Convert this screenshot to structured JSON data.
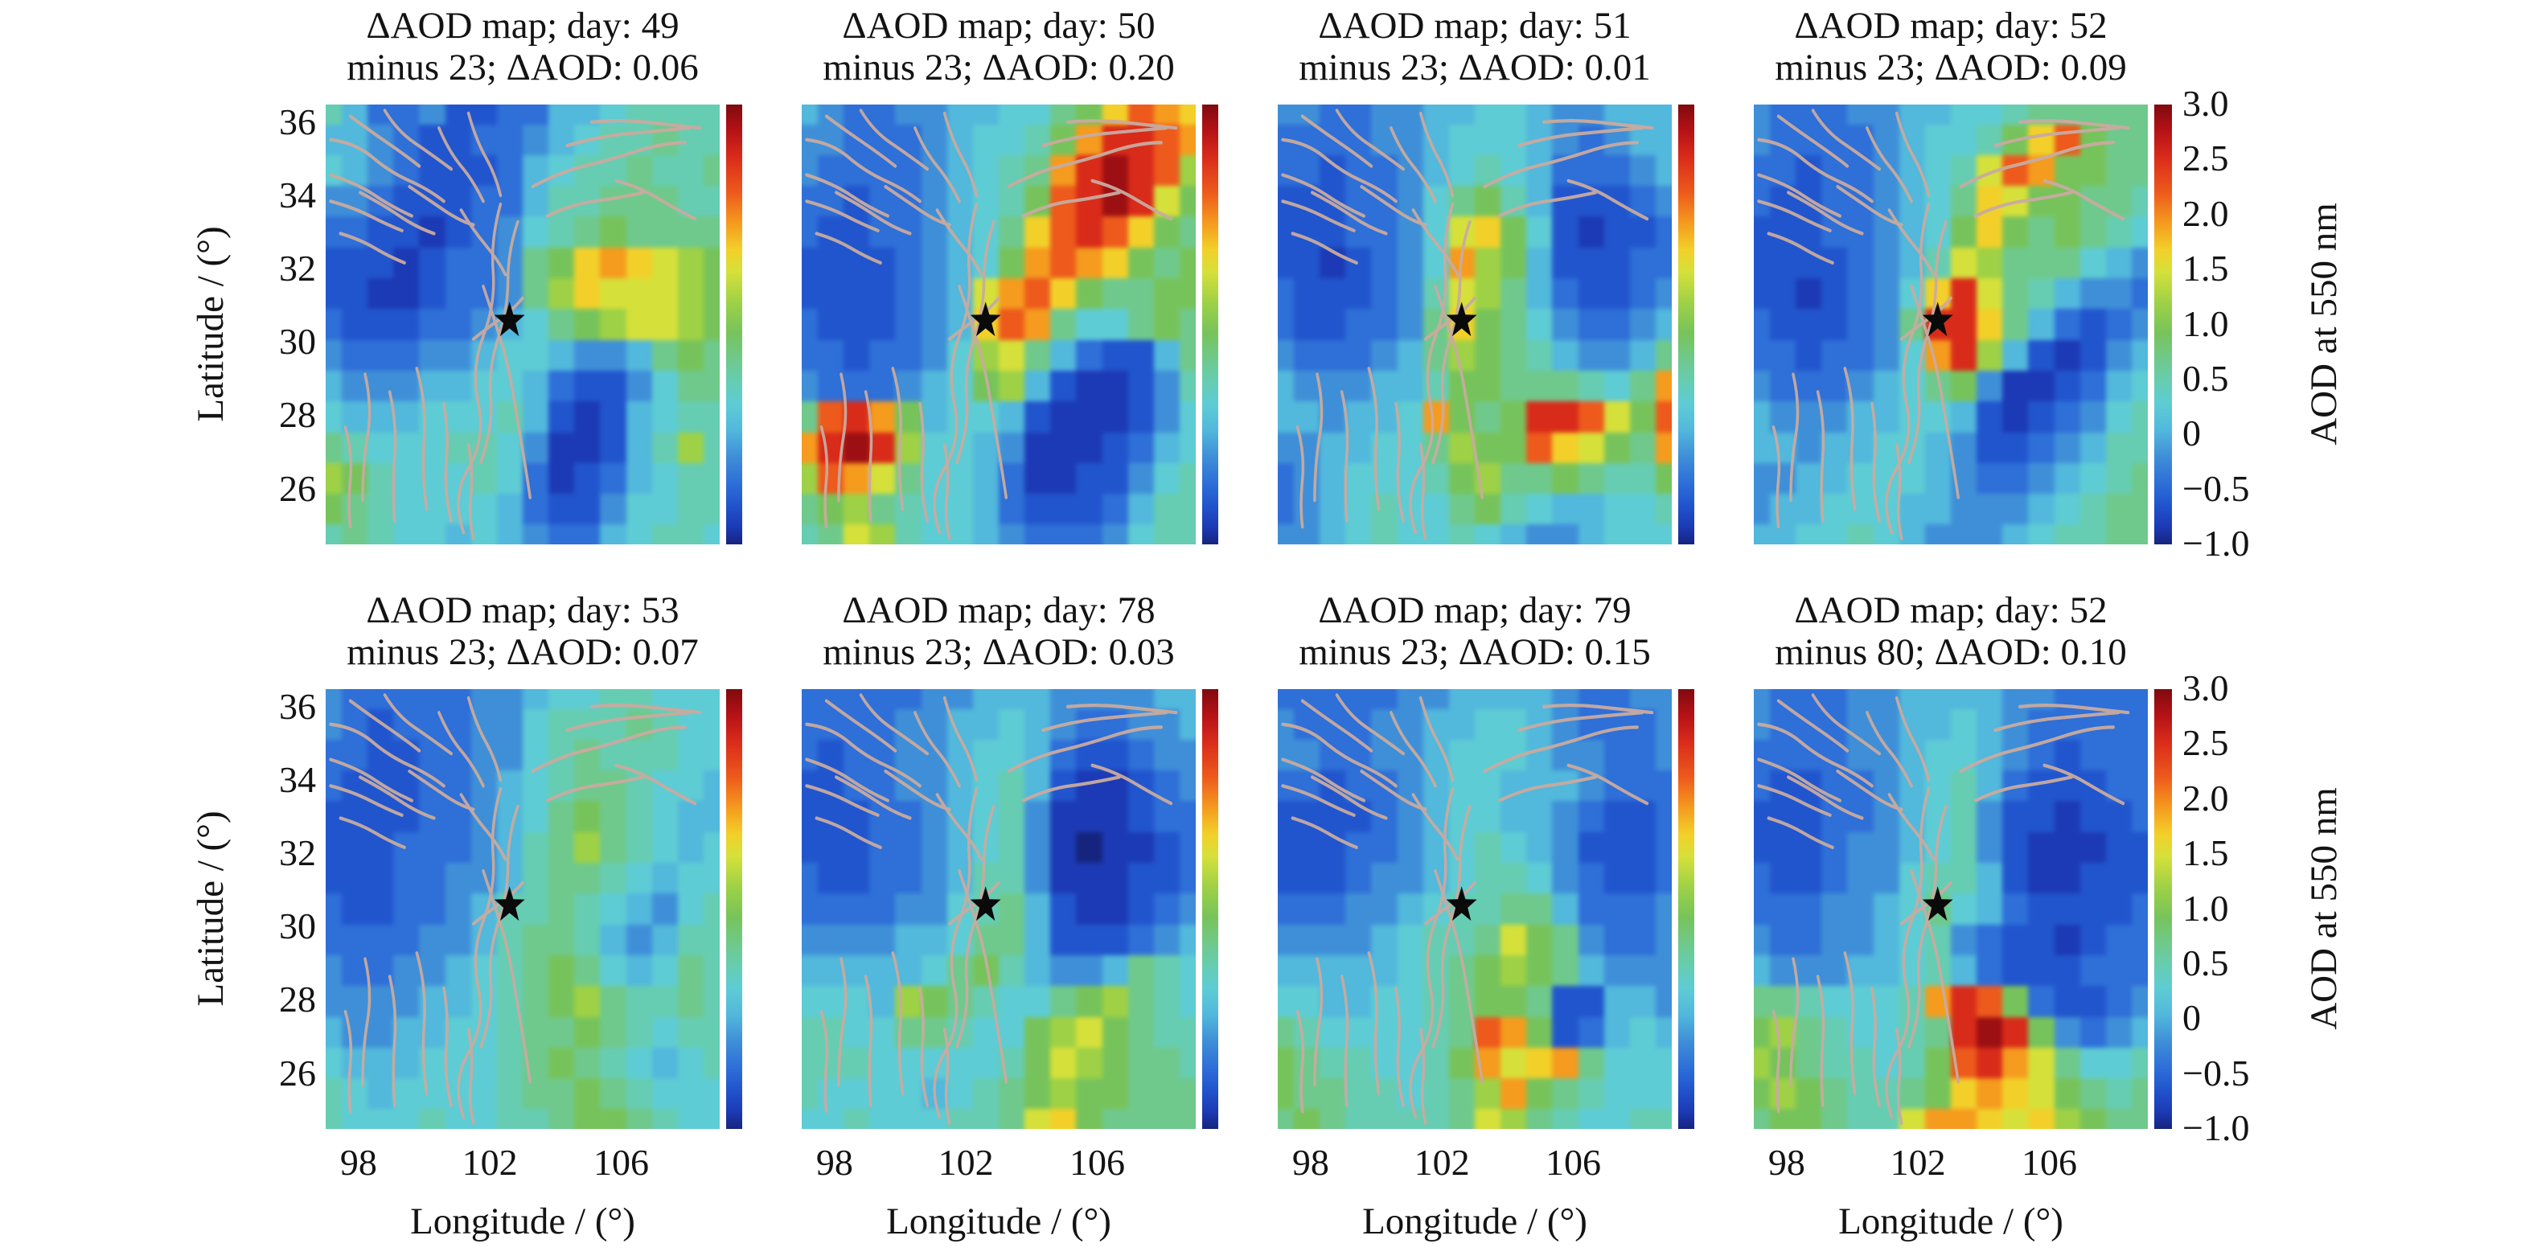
{
  "figure": {
    "ylabel": "Latitude / (°)",
    "xlabel": "Longitude / (°)",
    "colorbar_label": "AOD at 550 nm",
    "colorbar_tick_labels": [
      "3.0",
      "2.5",
      "2.0",
      "1.5",
      "1.0",
      "0.5",
      "0",
      "−0.5",
      "−1.0"
    ],
    "y_tick_labels": [
      "36",
      "34",
      "32",
      "30",
      "28",
      "26"
    ],
    "x_tick_labels": [
      "98",
      "102",
      "106"
    ]
  },
  "chart_data": {
    "type": "heatmap",
    "layout": {
      "rows": 2,
      "cols": 4,
      "legend_position": "right",
      "grid": "off"
    },
    "x_range": [
      97,
      109
    ],
    "y_range": [
      24.5,
      36.5
    ],
    "value_range": [
      -1.0,
      3.0
    ],
    "colormap": "jet",
    "x_ticks": [
      98,
      102,
      106
    ],
    "y_ticks": [
      36,
      34,
      32,
      30,
      28,
      26
    ],
    "colorbar_ticks": [
      3.0,
      2.5,
      2.0,
      1.5,
      1.0,
      0.5,
      0,
      -0.5,
      -1.0
    ],
    "epicenter": {
      "lon": 102.6,
      "lat": 30.6,
      "marker": "black-star"
    },
    "grid_encoding": "each panel is a 16x15 cell approximation; chars 0-g index the palette from low AOD (0 = -1.0) to high AOD (g = 3.0)",
    "palette": {
      "0": "#16247e",
      "1": "#1c3ab5",
      "2": "#2155cd",
      "3": "#2e6fd8",
      "4": "#3f8fd8",
      "5": "#52b8dc",
      "6": "#5eccd4",
      "7": "#66cdb2",
      "8": "#6fc98c",
      "9": "#77c35b",
      "a": "#9ed146",
      "b": "#d6e03a",
      "c": "#f2d029",
      "d": "#f59b1e",
      "e": "#ed5a1c",
      "f": "#d92b1a",
      "g": "#9c0f12"
    },
    "fault_line_color": "#c9aba0",
    "panels": [
      {
        "title_line1": "ΔAOD map; day: 49",
        "title_line2": "minus 23; ΔAOD: 0.06",
        "day": 49,
        "minus_day": 23,
        "delta_aod": 0.06,
        "grid": [
          "7533422335567777",
          "5543223345677877",
          "6543222356778778",
          "4432223357788877",
          "3322123467898888",
          "2221233489cdcba9",
          "221123348acbbba9",
          "32223345689abba9",
          "4333445665445898",
          "5444556653224688",
          "6555666752125677",
          "87666776411257a7",
          "a976667631235677",
          "9876666532246677",
          "7876656543356776"
        ]
      },
      {
        "title_line1": "ΔAOD map; day: 50",
        "title_line2": "minus 23; ΔAOD: 0.20",
        "day": 50,
        "minus_day": 23,
        "delta_aod": 0.2,
        "grid": [
          "543344556689cedc",
          "44333456679dffed",
          "4333345678dfgfea",
          "3323345679efgfb9",
          "322334568cefec98",
          "222234569dedc989",
          "2222345bdec98899",
          "3222345ced866898",
          "3323346ab8532258",
          "43334569a5211247",
          "8efd956652111246",
          "dfgfa66541112356",
          "aedb866531122467",
          "89a8766532223577",
          "78ba766543334677"
        ]
      },
      {
        "title_line1": "ΔAOD map; day: 51",
        "title_line2": "minus 23; ΔAOD: 0.01",
        "day": 51,
        "minus_day": 23,
        "delta_aod": 0.01,
        "grid": [
          "4433445566544555",
          "3333445666543455",
          "3323345676533345",
          "2223346897522234",
          "2223346bc9621223",
          "2212346da9522233",
          "3222347ba8532234",
          "3223348c98643345",
          "4333458a98754458",
          "544455799888768d",
          "554556d989ffeb9e",
          "4455668a99ecb98d",
          "34566679a8898779",
          "3456766897655667",
          "4456766765445666"
        ]
      },
      {
        "title_line1": "ΔAOD map; day: 52",
        "title_line2": "minus 23; ΔAOD: 0.09",
        "day": 52,
        "minus_day": 23,
        "delta_aod": 0.09,
        "grid": [
          "4333445566788888",
          "43333456679ce988",
          "332334567bed9988",
          "322334568cb99887",
          "222334569c989876",
          "22223457ba888654",
          "2212346cfb875443",
          "3222348ffc853234",
          "3323346dfa521245",
          "4333456894112356",
          "5444556652123467",
          "5545566542234577",
          "4455666543345678",
          "4556665544456788",
          "5566765444567788"
        ]
      },
      {
        "title_line1": "ΔAOD map; day: 53",
        "title_line2": "minus 23; ΔAOD: 0.07",
        "day": 53,
        "minus_day": 23,
        "delta_aod": 0.07,
        "grid": [
          "4333334456677666",
          "4323334467778766",
          "3322334467877766",
          "3222334567887665",
          "2222334568987655",
          "2223334578a87656",
          "2223344578876566",
          "3223345778765467",
          "3333445788754577",
          "4334456789865687",
          "4444556789a87787",
          "5445566788987677",
          "6555666789876567",
          "7656666788987666",
          "7666766778998766"
        ]
      },
      {
        "title_line1": "ΔAOD map; day: 78",
        "title_line2": "minus 23; ΔAOD: 0.03",
        "day": 78,
        "minus_day": 23,
        "delta_aod": 0.03,
        "grid": [
          "3333344555444455",
          "3333445565433445",
          "3233445665322344",
          "2233445675211234",
          "2223345674111233",
          "2223345674101123",
          "3223345774111223",
          "3333446785211234",
          "4444556885222345",
          "5555568975445876",
          "6665a9876689a876",
          "7766887669ab9877",
          "7776666679ba9887",
          "7666656789a99888",
          "667666778bc98888"
        ]
      },
      {
        "title_line1": "ΔAOD map; day: 79",
        "title_line2": "minus 23; ΔAOD: 0.15",
        "day": 79,
        "minus_day": 23,
        "delta_aod": 0.15,
        "grid": [
          "3333344555543344",
          "4333445566543334",
          "4433445666544334",
          "3323345665554333",
          "2222345665543223",
          "2223345676542223",
          "2223445677643223",
          "3334456778853334",
          "444456778b984334",
          "555556789a985444",
          "6655667899822554",
          "87666678ed923565",
          "98776679dbcd8666",
          "98877678ad987666",
          "89877778ba876677"
        ]
      },
      {
        "title_line1": "ΔAOD map; day: 52",
        "title_line2": "minus 80; ΔAOD: 0.10",
        "day": 52,
        "minus_day": 80,
        "delta_aod": 0.1,
        "grid": [
          "4333445555443333",
          "4333445565433333",
          "3333445665432333",
          "3223345675322233",
          "2223345674221223",
          "2223445674211122",
          "3223446775211222",
          "3334456865322223",
          "4334456743221233",
          "5444556753222333",
          "8876667dfe932234",
          "9a876678fgf94345",
          "a9877679efdb8667",
          "9a987789cdcb9878",
          "899877bddcbca988"
        ]
      }
    ]
  }
}
